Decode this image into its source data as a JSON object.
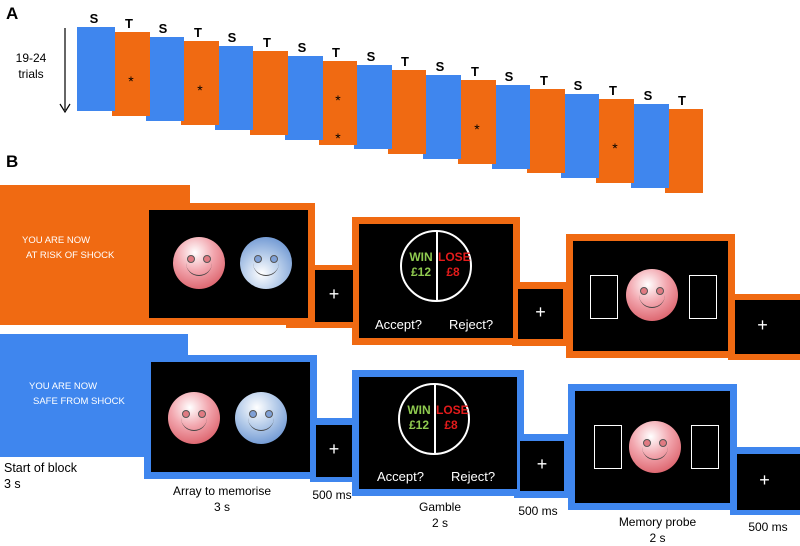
{
  "panel_a": {
    "label": "A",
    "trials_line1": "19-24",
    "trials_line2": "trials",
    "blocks": [
      {
        "type": "S",
        "stars": 0
      },
      {
        "type": "T",
        "stars": 1
      },
      {
        "type": "S",
        "stars": 0
      },
      {
        "type": "T",
        "stars": 1
      },
      {
        "type": "S",
        "stars": 0
      },
      {
        "type": "T",
        "stars": 0
      },
      {
        "type": "S",
        "stars": 0
      },
      {
        "type": "T",
        "stars": 2
      },
      {
        "type": "S",
        "stars": 0
      },
      {
        "type": "T",
        "stars": 0
      },
      {
        "type": "S",
        "stars": 0
      },
      {
        "type": "T",
        "stars": 1
      },
      {
        "type": "S",
        "stars": 0
      },
      {
        "type": "T",
        "stars": 0
      },
      {
        "type": "S",
        "stars": 0
      },
      {
        "type": "T",
        "stars": 1
      },
      {
        "type": "S",
        "stars": 0
      },
      {
        "type": "T",
        "stars": 0
      }
    ],
    "star_symbol": "*"
  },
  "panel_b": {
    "label": "B",
    "threat_cue": {
      "line1": "YOU ARE NOW",
      "line2": "AT RISK OF SHOCK"
    },
    "safe_cue": {
      "line1": "YOU ARE NOW",
      "line2": "SAFE FROM SHOCK"
    },
    "fixation": "+",
    "gamble": {
      "win_word": "WIN",
      "win_amount": "£12",
      "lose_word": "LOSE",
      "lose_amount": "£8",
      "accept": "Accept?",
      "reject": "Reject?"
    },
    "captions": {
      "start_line1": "Start of block",
      "start_line2": "3 s",
      "array_line1": "Array to memorise",
      "array_line2": "3 s",
      "isi1": "500 ms",
      "gamble_line1": "Gamble",
      "gamble_line2": "2 s",
      "isi2": "500 ms",
      "probe_line1": "Memory probe",
      "probe_line2": "2 s",
      "isi3": "500 ms"
    }
  },
  "colors": {
    "threat": "#f06a12",
    "safe": "#3f86ee",
    "screen": "#000000",
    "win": "#8fca4f",
    "lose": "#e31b1b"
  }
}
